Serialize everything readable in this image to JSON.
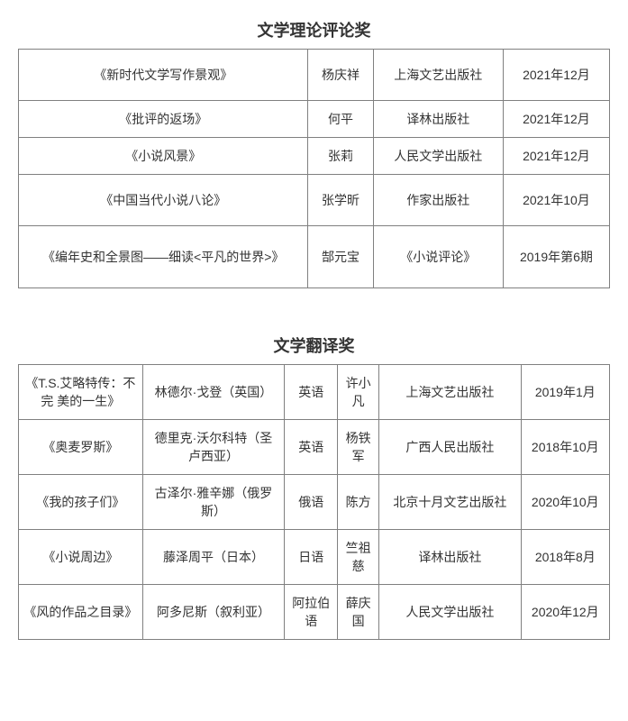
{
  "section1": {
    "title": "文学理论评论奖",
    "rows": [
      {
        "work": "《新时代文学写作景观》",
        "author": "杨庆祥",
        "publisher": "上海文艺出版社",
        "date": "2021年12月"
      },
      {
        "work": "《批评的返场》",
        "author": "何平",
        "publisher": "译林出版社",
        "date": "2021年12月"
      },
      {
        "work": "《小说风景》",
        "author": "张莉",
        "publisher": "人民文学出版社",
        "date": "2021年12月"
      },
      {
        "work": "《中国当代小说八论》",
        "author": "张学昕",
        "publisher": "作家出版社",
        "date": "2021年10月"
      },
      {
        "work": "《编年史和全景图——细读<平凡的世界>》",
        "author": "郜元宝",
        "publisher": "《小说评论》",
        "date": "2019年第6期"
      }
    ]
  },
  "section2": {
    "title": "文学翻译奖",
    "rows": [
      {
        "work": "《T.S.艾略特传：不完 美的一生》",
        "original_author": "林德尔·戈登（英国）",
        "language": "英语",
        "translator": "许小凡",
        "publisher": "上海文艺出版社",
        "date": "2019年1月"
      },
      {
        "work": "《奥麦罗斯》",
        "original_author": "德里克·沃尔科特（圣 卢西亚）",
        "language": "英语",
        "translator": "杨铁军",
        "publisher": "广西人民出版社",
        "date": "2018年10月"
      },
      {
        "work": "《我的孩子们》",
        "original_author": "古泽尔·雅辛娜（俄罗斯）",
        "language": "俄语",
        "translator": "陈方",
        "publisher": "北京十月文艺出版社",
        "date": "2020年10月"
      },
      {
        "work": "《小说周边》",
        "original_author": "藤泽周平（日本）",
        "language": "日语",
        "translator": "竺祖慈",
        "publisher": "译林出版社",
        "date": "2018年8月"
      },
      {
        "work": "《风的作品之目录》",
        "original_author": "阿多尼斯（叙利亚）",
        "language": "阿拉伯语",
        "translator": "薛庆国",
        "publisher": "人民文学出版社",
        "date": "2020年12月"
      }
    ]
  },
  "style": {
    "border_color": "#808080",
    "text_color": "#333333",
    "background_color": "#ffffff",
    "title_fontsize": 18,
    "cell_fontsize": 14
  }
}
